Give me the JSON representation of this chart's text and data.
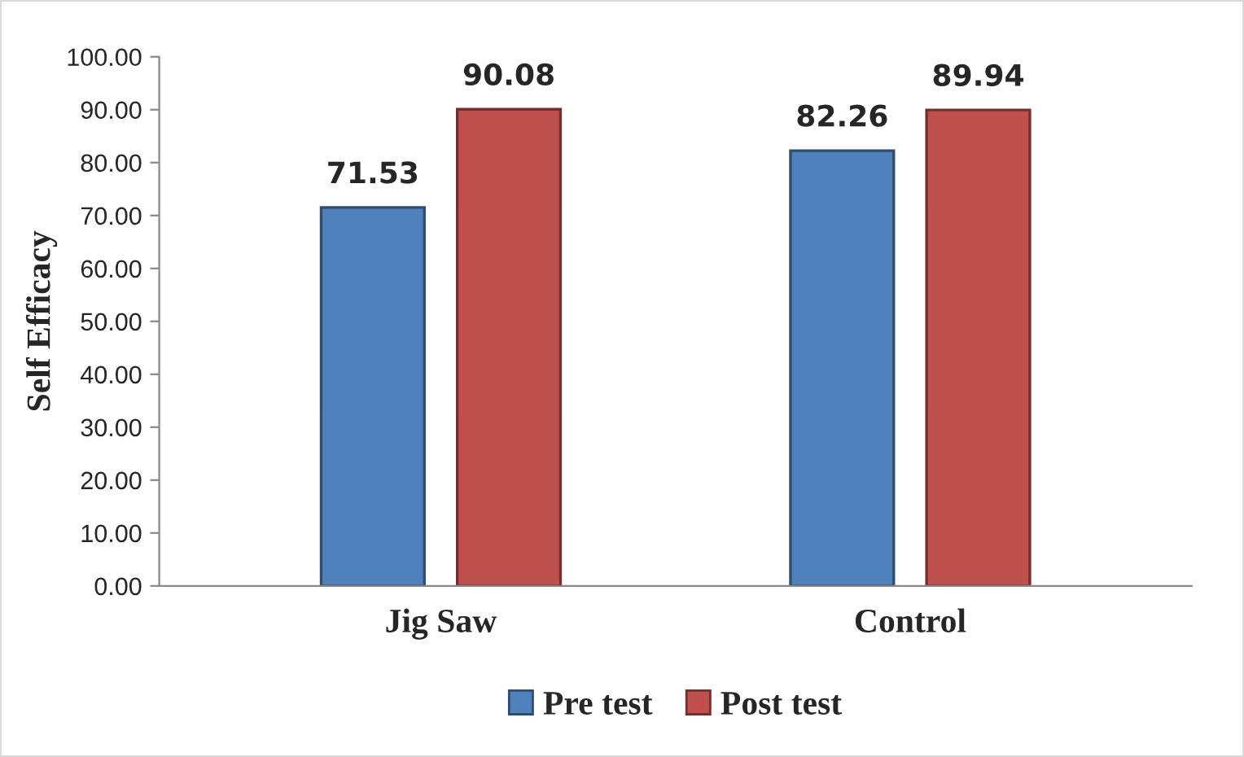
{
  "chart_data": {
    "type": "bar",
    "ylabel": "Self Efficacy",
    "categories": [
      "Jig Saw",
      "Control"
    ],
    "series": [
      {
        "name": "Pre test",
        "color": "#4f81bd",
        "values": [
          71.53,
          82.26
        ]
      },
      {
        "name": "Post test",
        "color": "#c0504d",
        "values": [
          90.08,
          89.94
        ]
      }
    ],
    "ylim": [
      0,
      100
    ],
    "yticks": [
      {
        "value": 0,
        "label": "0.00"
      },
      {
        "value": 10,
        "label": "10.00"
      },
      {
        "value": 20,
        "label": "20.00"
      },
      {
        "value": 30,
        "label": "30.00"
      },
      {
        "value": 40,
        "label": "40.00"
      },
      {
        "value": 50,
        "label": "50.00"
      },
      {
        "value": 60,
        "label": "60.00"
      },
      {
        "value": 70,
        "label": "70.00"
      },
      {
        "value": 80,
        "label": "80.00"
      },
      {
        "value": 90,
        "label": "90.00"
      },
      {
        "value": 100,
        "label": "100.00"
      }
    ],
    "data_labels": true,
    "legend": "bottom",
    "grid": false
  }
}
